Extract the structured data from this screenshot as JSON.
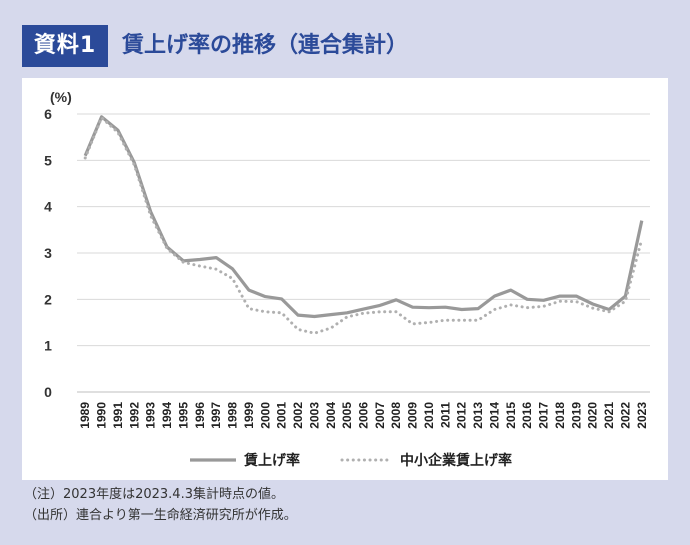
{
  "header": {
    "badge": "資料1",
    "title": "賃上げ率の推移（連合集計）"
  },
  "notes": [
    "（注）2023年度は2023.4.3集計時点の値。",
    "（出所）連合より第一生命経済研究所が作成。"
  ],
  "colors": {
    "frame": "#d6d9ec",
    "accent": "#2b4a99",
    "series_main": "#999999",
    "series_sme": "#b0b0b0",
    "grid": "#d9d9d9"
  },
  "chart_data": {
    "type": "line",
    "ylabel": "(%)",
    "ylim": [
      0,
      6
    ],
    "yticks": [
      "0",
      "1",
      "2",
      "3",
      "4",
      "5",
      "6"
    ],
    "grid": "horizontal",
    "legend_position": "bottom",
    "categories": [
      "1989",
      "1990",
      "1991",
      "1992",
      "1993",
      "1994",
      "1995",
      "1996",
      "1997",
      "1998",
      "1999",
      "2000",
      "2001",
      "2002",
      "2003",
      "2004",
      "2005",
      "2006",
      "2007",
      "2008",
      "2009",
      "2010",
      "2011",
      "2012",
      "2013",
      "2014",
      "2015",
      "2016",
      "2017",
      "2018",
      "2019",
      "2020",
      "2021",
      "2022",
      "2023"
    ],
    "series": [
      {
        "name": "賃上げ率",
        "style": "solid",
        "values": [
          5.1,
          5.94,
          5.65,
          4.95,
          3.89,
          3.13,
          2.83,
          2.86,
          2.9,
          2.66,
          2.2,
          2.06,
          2.01,
          1.66,
          1.63,
          1.67,
          1.71,
          1.79,
          1.87,
          1.99,
          1.83,
          1.82,
          1.83,
          1.78,
          1.8,
          2.07,
          2.2,
          2.0,
          1.98,
          2.07,
          2.07,
          1.9,
          1.78,
          2.07,
          3.7
        ]
      },
      {
        "name": "中小企業賃上げ率",
        "style": "dotted",
        "values": [
          5.05,
          5.92,
          5.6,
          4.9,
          3.8,
          3.1,
          2.8,
          2.72,
          2.65,
          2.45,
          1.8,
          1.73,
          1.71,
          1.35,
          1.27,
          1.38,
          1.62,
          1.7,
          1.73,
          1.73,
          1.47,
          1.5,
          1.55,
          1.55,
          1.55,
          1.78,
          1.88,
          1.82,
          1.85,
          1.96,
          1.95,
          1.81,
          1.73,
          1.96,
          3.3
        ]
      }
    ]
  }
}
